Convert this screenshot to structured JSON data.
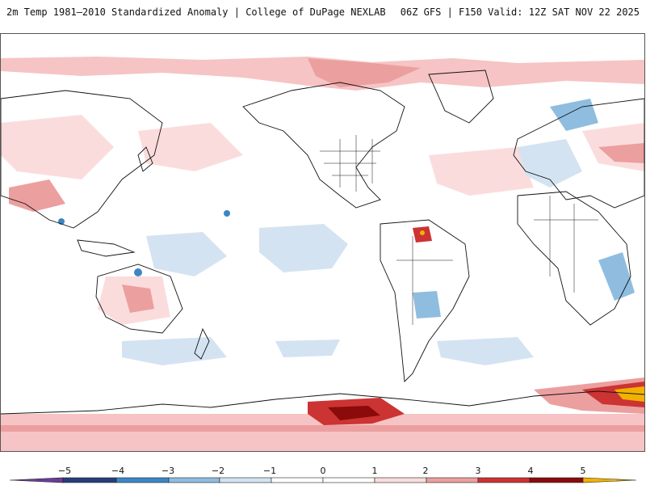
{
  "header": {
    "title": "2m Temp 1981–2010 Standardized Anomaly | College of DuPage NEXLAB",
    "run_info": "06Z GFS | F150 Valid: 12Z SAT NOV 22 2025"
  },
  "map": {
    "projection": "global-cylindrical",
    "central_meridian": "180",
    "field": "2m temperature standardized anomaly"
  },
  "colorbar": {
    "ticks": [
      "−5",
      "−4",
      "−3",
      "−2",
      "−1",
      "0",
      "1",
      "2",
      "3",
      "4",
      "5"
    ],
    "colors": [
      "#6a3d9a",
      "#253d7a",
      "#3b86c6",
      "#8fbde0",
      "#d4e3f1",
      "#ffffff",
      "#fbdcdc",
      "#ec9f9f",
      "#cc3333",
      "#8b0a0a",
      "#f2b200"
    ]
  }
}
